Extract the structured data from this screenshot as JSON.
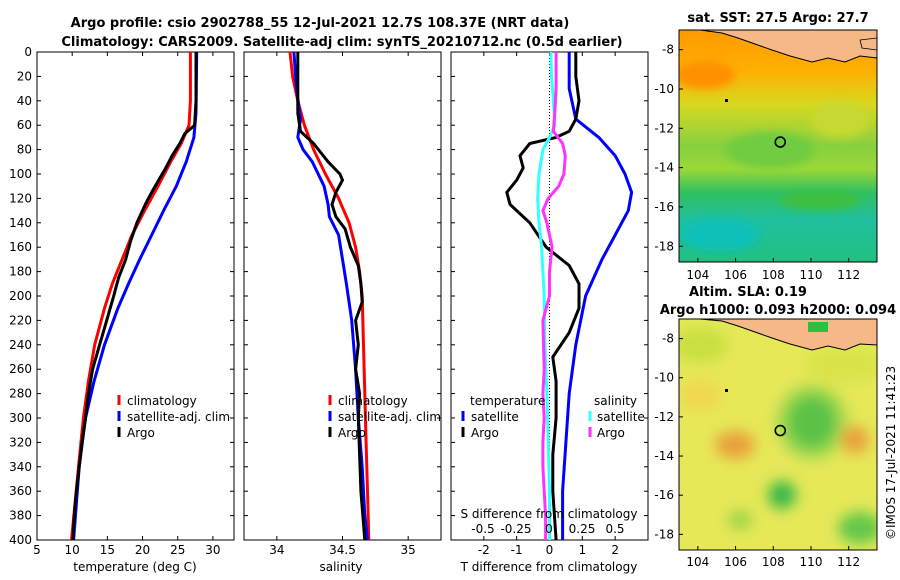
{
  "title": {
    "line1": "Argo profile: csio 2902788_55 12-Jul-2021 12.7S 108.37E (NRT data)",
    "line2": "Climatology: CARS2009. Satellite-adj clim: synTS_20210712.nc (0.5d earlier)"
  },
  "colors": {
    "climatology": "#ff0000",
    "satellite": "#0000ff",
    "argo": "#000000",
    "salinity_sat": "#33ffff",
    "salinity_argo": "#ff33ff"
  },
  "chart_data": [
    {
      "type": "line",
      "id": "temperature",
      "xlabel": "temperature (deg C)",
      "ylabel": "",
      "xlim": [
        5,
        33
      ],
      "ylim": [
        0,
        400
      ],
      "xticks": [
        5,
        10,
        15,
        20,
        25,
        30
      ],
      "yticks": [
        0,
        20,
        40,
        60,
        80,
        100,
        120,
        140,
        160,
        180,
        200,
        220,
        240,
        260,
        280,
        300,
        320,
        340,
        360,
        380,
        400
      ],
      "legend": [
        "climatology",
        "satellite-adj. clim",
        "Argo"
      ],
      "series": [
        {
          "name": "climatology",
          "color": "#ff0000",
          "depth": [
            0,
            40,
            60,
            75,
            90,
            110,
            130,
            150,
            170,
            190,
            210,
            240,
            270,
            300,
            340,
            400
          ],
          "values": [
            26.8,
            26.8,
            26.6,
            25.5,
            24.0,
            22.2,
            20.3,
            18.5,
            17.1,
            15.7,
            14.6,
            13.2,
            12.3,
            11.6,
            10.9,
            9.9
          ]
        },
        {
          "name": "satellite-adj. clim",
          "color": "#0000ff",
          "depth": [
            0,
            50,
            70,
            90,
            110,
            130,
            150,
            170,
            190,
            210,
            240,
            270,
            300,
            340,
            400
          ],
          "values": [
            27.7,
            27.6,
            27.3,
            26.2,
            24.8,
            23.0,
            21.3,
            19.6,
            18.0,
            16.5,
            14.6,
            13.1,
            11.9,
            11.0,
            10.2
          ]
        },
        {
          "name": "Argo",
          "color": "#000000",
          "depth": [
            0,
            40,
            60,
            67,
            75,
            85,
            95,
            105,
            115,
            125,
            140,
            155,
            170,
            185,
            200,
            220,
            240,
            260,
            280,
            300,
            320,
            340,
            360,
            380,
            400
          ],
          "values": [
            27.6,
            27.6,
            27.4,
            26.0,
            25.3,
            24.2,
            23.3,
            22.3,
            21.3,
            20.4,
            19.2,
            18.3,
            17.6,
            16.6,
            15.9,
            14.9,
            13.9,
            12.9,
            12.3,
            11.9,
            11.4,
            11.0,
            10.6,
            10.3,
            10.1
          ]
        }
      ]
    },
    {
      "type": "line",
      "id": "salinity",
      "xlabel": "salinity",
      "xlim": [
        33.75,
        35.25
      ],
      "ylim": [
        0,
        400
      ],
      "xticks": [
        34,
        34.5,
        35
      ],
      "legend": [
        "climatology",
        "satellite-adj. clim",
        "Argo"
      ],
      "series": [
        {
          "name": "climatology",
          "color": "#ff0000",
          "depth": [
            0,
            20,
            40,
            60,
            80,
            100,
            120,
            140,
            160,
            180,
            200,
            240,
            280,
            320,
            360,
            400
          ],
          "values": [
            34.1,
            34.12,
            34.16,
            34.21,
            34.28,
            34.37,
            34.47,
            34.55,
            34.6,
            34.63,
            34.65,
            34.66,
            34.67,
            34.68,
            34.69,
            34.7
          ]
        },
        {
          "name": "satellite-adj. clim",
          "color": "#0000ff",
          "depth": [
            0,
            30,
            55,
            70,
            80,
            90,
            110,
            125,
            135,
            150,
            170,
            190,
            220,
            260,
            300,
            340,
            380,
            400
          ],
          "values": [
            34.13,
            34.15,
            34.18,
            34.16,
            34.2,
            34.27,
            34.36,
            34.39,
            34.4,
            34.47,
            34.5,
            34.53,
            34.57,
            34.6,
            34.62,
            34.65,
            34.67,
            34.69
          ]
        },
        {
          "name": "Argo",
          "color": "#000000",
          "depth": [
            0,
            20,
            50,
            65,
            75,
            90,
            100,
            105,
            115,
            125,
            135,
            145,
            160,
            175,
            190,
            205,
            220,
            240,
            260,
            280,
            300,
            330,
            360,
            400
          ],
          "values": [
            34.16,
            34.16,
            34.16,
            34.18,
            34.28,
            34.39,
            34.48,
            34.5,
            34.45,
            34.42,
            34.45,
            34.52,
            34.56,
            34.62,
            34.64,
            34.65,
            34.6,
            34.62,
            34.6,
            34.63,
            34.62,
            34.63,
            34.64,
            34.67
          ]
        }
      ]
    },
    {
      "type": "line",
      "id": "difference",
      "xlabel": "T difference from climatology",
      "xlabel2": "S difference from climatology",
      "xlim": [
        -3,
        3
      ],
      "ylim": [
        0,
        400
      ],
      "xticks": [
        -2,
        -1,
        0,
        1,
        2
      ],
      "xticks2": [
        "-0.5",
        "-0.25",
        "0",
        "0.25",
        "0.5"
      ],
      "legend_left_title": "temperature",
      "legend_right_title": "salinity",
      "legend_left": [
        "satellite",
        "Argo"
      ],
      "legend_right": [
        "satellite",
        "Argo"
      ],
      "series": [
        {
          "name": "temperature satellite",
          "color": "#0000ff",
          "depth": [
            0,
            30,
            55,
            70,
            85,
            100,
            115,
            130,
            150,
            170,
            200,
            240,
            280,
            320,
            360,
            400
          ],
          "values": [
            0.6,
            0.6,
            0.8,
            1.5,
            2.0,
            2.3,
            2.5,
            2.4,
            2.0,
            1.6,
            1.1,
            0.8,
            0.6,
            0.5,
            0.4,
            0.4
          ]
        },
        {
          "name": "temperature Argo",
          "color": "#000000",
          "depth": [
            0,
            20,
            40,
            55,
            65,
            70,
            75,
            85,
            95,
            105,
            115,
            125,
            140,
            160,
            175,
            190,
            210,
            230,
            250,
            270,
            300,
            330,
            360,
            400
          ],
          "values": [
            0.8,
            0.8,
            0.9,
            0.8,
            0.6,
            0.2,
            -0.6,
            -0.9,
            -0.8,
            -1.0,
            -1.3,
            -1.2,
            -0.6,
            -0.1,
            0.6,
            0.9,
            0.9,
            0.6,
            0.1,
            0.2,
            0.2,
            0.1,
            0.1,
            0.2
          ]
        },
        {
          "name": "salinity satellite",
          "color": "#33ffff",
          "depth": [
            0,
            20,
            40,
            60,
            70,
            80,
            100,
            120,
            140,
            160,
            180,
            200,
            240,
            280,
            320,
            360,
            400
          ],
          "values": [
            0.01,
            0.015,
            0.03,
            0.04,
            0.0,
            -0.05,
            -0.08,
            -0.09,
            -0.08,
            -0.06,
            -0.05,
            -0.04,
            -0.035,
            -0.02,
            -0.01,
            0.0,
            0.0
          ]
        },
        {
          "name": "salinity Argo",
          "color": "#ff33ff",
          "depth": [
            0,
            30,
            50,
            65,
            75,
            85,
            100,
            110,
            120,
            130,
            140,
            160,
            180,
            200,
            220,
            260,
            280,
            300,
            320,
            340,
            360,
            380,
            400
          ],
          "values": [
            0.05,
            0.05,
            0.04,
            0.03,
            0.1,
            0.12,
            0.11,
            0.07,
            -0.01,
            -0.05,
            -0.02,
            0.02,
            0.0,
            0.0,
            -0.05,
            -0.04,
            -0.05,
            -0.04,
            -0.05,
            -0.05,
            -0.04,
            -0.03,
            -0.03
          ]
        }
      ]
    },
    {
      "type": "heatmap",
      "id": "sst_map",
      "title": "sat. SST: 27.5 Argo: 27.7",
      "xlim": [
        103,
        113.5
      ],
      "ylim": [
        -18.8,
        -7
      ],
      "xticks": [
        104,
        106,
        108,
        110,
        112
      ],
      "yticks": [
        -8,
        -10,
        -12,
        -14,
        -16,
        -18
      ],
      "argo_position": [
        108.37,
        -12.7
      ]
    },
    {
      "type": "heatmap",
      "id": "sla_map",
      "title": "Altim. SLA: 0.19",
      "subtitle": "Argo h1000: 0.093 h2000: 0.094",
      "xlim": [
        103,
        113.5
      ],
      "ylim": [
        -18.8,
        -7
      ],
      "xticks": [
        104,
        106,
        108,
        110,
        112
      ],
      "yticks": [
        -8,
        -10,
        -12,
        -14,
        -16,
        -18
      ],
      "argo_position": [
        108.37,
        -12.7
      ]
    }
  ],
  "credit": "©IMOS 17-Jul-2021 11:41:23"
}
